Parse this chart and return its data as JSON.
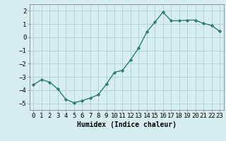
{
  "x": [
    0,
    1,
    2,
    3,
    4,
    5,
    6,
    7,
    8,
    9,
    10,
    11,
    12,
    13,
    14,
    15,
    16,
    17,
    18,
    19,
    20,
    21,
    22,
    23
  ],
  "y": [
    -3.6,
    -3.2,
    -3.4,
    -3.9,
    -4.7,
    -4.95,
    -4.8,
    -4.6,
    -4.35,
    -3.55,
    -2.65,
    -2.5,
    -1.7,
    -0.8,
    0.4,
    1.15,
    1.9,
    1.25,
    1.25,
    1.3,
    1.3,
    1.05,
    0.9,
    0.45
  ],
  "line_color": "#2e7d6e",
  "marker": "D",
  "marker_size": 2.2,
  "bg_color": "#d6eef0",
  "grid_color": "#b0d4d8",
  "xlabel": "Humidex (Indice chaleur)",
  "xlabel_fontsize": 7,
  "tick_fontsize": 6.5,
  "ylim": [
    -5.5,
    2.5
  ],
  "xlim": [
    -0.5,
    23.5
  ],
  "yticks": [
    -5,
    -4,
    -3,
    -2,
    -1,
    0,
    1,
    2
  ],
  "xticks": [
    0,
    1,
    2,
    3,
    4,
    5,
    6,
    7,
    8,
    9,
    10,
    11,
    12,
    13,
    14,
    15,
    16,
    17,
    18,
    19,
    20,
    21,
    22,
    23
  ],
  "linewidth": 1.0,
  "spine_color": "#888888"
}
